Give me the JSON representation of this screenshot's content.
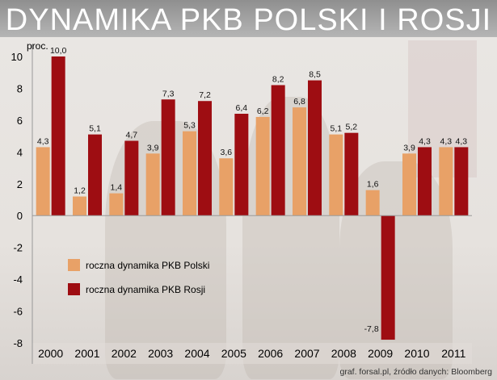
{
  "chart_data": {
    "type": "bar",
    "title": "DYNAMIKA PKB POLSKI I ROSJI",
    "ylabel": "proc.",
    "xlabel": "",
    "ylim": [
      -8,
      10
    ],
    "yticks": [
      10,
      8,
      6,
      4,
      2,
      0,
      -2,
      -4,
      -6,
      -8
    ],
    "ytick_labels": [
      "10",
      "8",
      "6",
      "4",
      "2",
      "0",
      "-2",
      "-4",
      "-6",
      "-8"
    ],
    "categories": [
      "2000",
      "2001",
      "2002",
      "2003",
      "2004",
      "2005",
      "2006",
      "2007",
      "2008",
      "2009",
      "2010",
      "2011"
    ],
    "series": [
      {
        "name": "roczna dynamika PKB Polski",
        "color": "#e8a167",
        "values": [
          4.3,
          1.2,
          1.4,
          3.9,
          5.3,
          3.6,
          6.2,
          6.8,
          5.1,
          1.6,
          3.9,
          4.3
        ],
        "labels": [
          "4,3",
          "1,2",
          "1,4",
          "3,9",
          "5,3",
          "3,6",
          "6,2",
          "6,8",
          "5,1",
          "1,6",
          "3,9",
          "4,3"
        ]
      },
      {
        "name": "roczna dynamika PKB Rosji",
        "color": "#9e0d12",
        "values": [
          10.0,
          5.1,
          4.7,
          7.3,
          7.2,
          6.4,
          8.2,
          8.5,
          5.2,
          -7.8,
          4.3,
          4.3
        ],
        "labels": [
          "10,0",
          "5,1",
          "4,7",
          "7,3",
          "7,2",
          "6,4",
          "8,2",
          "8,5",
          "5,2",
          "-7,8",
          "4,3",
          "4,3"
        ]
      }
    ],
    "grid": false,
    "legend_position": "lower-left"
  },
  "footer": {
    "source": "graf. forsal.pl, źródło danych: Bloomberg"
  }
}
